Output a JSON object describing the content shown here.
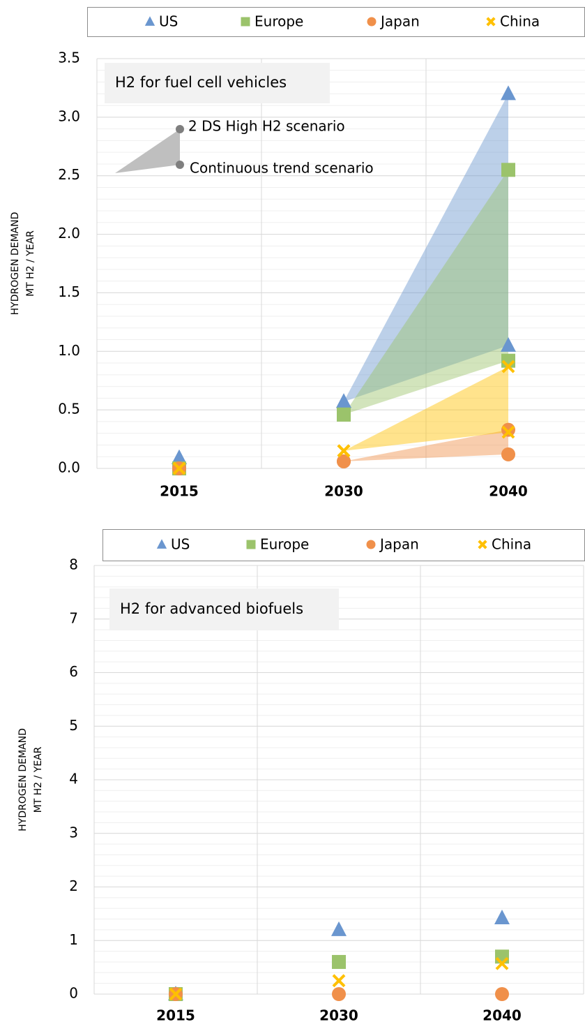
{
  "chart_data": [
    {
      "type": "scatter",
      "title": "H2 for fuel cell vehicles",
      "y_label": [
        "HYDROGEN DEMAND",
        "MT H2 / YEAR"
      ],
      "categories": [
        "2015",
        "2030",
        "2040"
      ],
      "ylim": [
        0,
        3.5
      ],
      "yticks": [
        {
          "value": 0,
          "label": "0.0"
        },
        0.5,
        {
          "value": 1,
          "label": "1.0"
        },
        1.5,
        {
          "value": 2,
          "label": "2.0"
        },
        2.5,
        {
          "value": 3,
          "label": "3.0"
        },
        3.5
      ],
      "minor_step": 0.1,
      "grid": true,
      "scenarios": [
        "2 DS High H2 scenario",
        "Continuous trend scenario"
      ],
      "series": [
        {
          "name": "US",
          "color": "#6a96cf",
          "marker": "triangle",
          "values": [
            0.09,
            0.57,
            3.2
          ],
          "values_low": [
            0.09,
            0.57,
            1.05
          ]
        },
        {
          "name": "Europe",
          "color": "#9bc36b",
          "marker": "square",
          "values": [
            0,
            0.46,
            2.55
          ],
          "values_low": [
            0,
            0.46,
            0.92
          ]
        },
        {
          "name": "Japan",
          "color": "#f0904a",
          "marker": "circle",
          "values": [
            0,
            0.06,
            0.33
          ],
          "values_low": [
            0,
            0.06,
            0.12
          ]
        },
        {
          "name": "China",
          "color": "#ffc000",
          "marker": "x",
          "values": [
            0,
            0.15,
            0.87
          ],
          "values_low": [
            0,
            0.15,
            0.31
          ]
        }
      ]
    },
    {
      "type": "scatter",
      "title": "H2 for advanced biofuels",
      "y_label": [
        "HYDROGEN DEMAND",
        "MT H2 / YEAR"
      ],
      "categories": [
        "2015",
        "2030",
        "2040"
      ],
      "ylim": [
        0,
        8
      ],
      "yticks": [
        0,
        1,
        2,
        3,
        4,
        5,
        6,
        7,
        8
      ],
      "minor_step": 0.2,
      "grid": true,
      "series": [
        {
          "name": "US",
          "color": "#6a96cf",
          "marker": "triangle",
          "values": [
            0,
            1.2,
            1.42
          ]
        },
        {
          "name": "Europe",
          "color": "#9bc36b",
          "marker": "square",
          "values": [
            0,
            0.6,
            0.7
          ]
        },
        {
          "name": "Japan",
          "color": "#f0904a",
          "marker": "circle",
          "values": [
            0,
            0,
            0
          ]
        },
        {
          "name": "China",
          "color": "#ffc000",
          "marker": "x",
          "values": [
            0,
            0.25,
            0.57
          ]
        }
      ]
    }
  ]
}
